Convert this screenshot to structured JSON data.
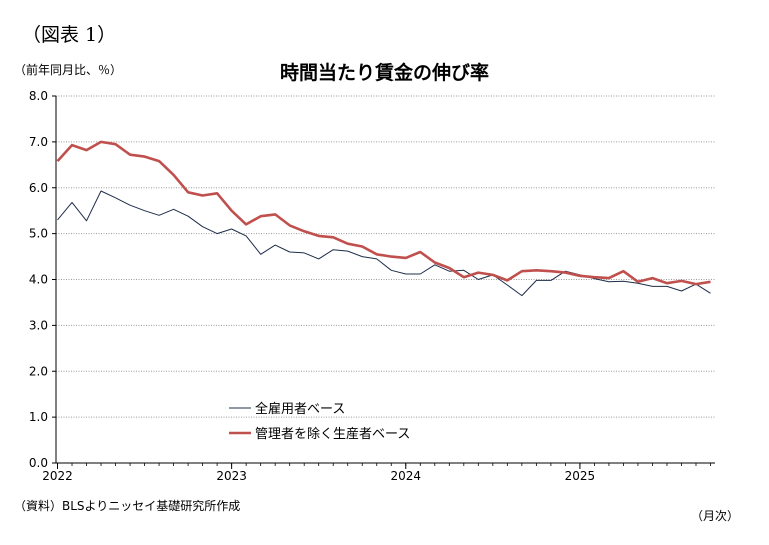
{
  "figure_label": "（図表 1）",
  "chart_data": {
    "type": "line",
    "title": "時間当たり賃金の伸び率",
    "ylabel": "（前年同月比、％）",
    "xlabel": "（月次）",
    "source": "（資料）BLSよりニッセイ基礎研究所作成",
    "ylim": [
      0,
      8
    ],
    "yticks": [
      "0.0",
      "1.0",
      "2.0",
      "3.0",
      "4.0",
      "5.0",
      "6.0",
      "7.0",
      "8.0"
    ],
    "xticks": [
      {
        "label": "2022",
        "index": 0
      },
      {
        "label": "2023",
        "index": 12
      },
      {
        "label": "2024",
        "index": 24
      },
      {
        "label": "2025",
        "index": 36
      }
    ],
    "grid": true,
    "legend_position": "bottom-left",
    "start_month": "2022-01",
    "series": [
      {
        "name": "全雇用者ベース",
        "color": "#1f2d4a",
        "values": [
          5.3,
          5.68,
          5.28,
          5.93,
          5.78,
          5.62,
          5.5,
          5.4,
          5.53,
          5.38,
          5.15,
          5.0,
          5.1,
          4.95,
          4.55,
          4.75,
          4.6,
          4.58,
          4.45,
          4.65,
          4.62,
          4.5,
          4.45,
          4.2,
          4.12,
          4.12,
          4.32,
          4.18,
          4.2,
          4.0,
          4.1,
          3.88,
          3.65,
          3.98,
          3.98,
          4.18,
          4.1,
          4.02,
          3.95,
          3.96,
          3.92,
          3.85,
          3.85,
          3.75,
          3.9,
          3.7
        ]
      },
      {
        "name": "管理者を除く生産者ベース",
        "color": "#c0504d",
        "values": [
          6.58,
          6.93,
          6.82,
          7.0,
          6.95,
          6.72,
          6.68,
          6.58,
          6.28,
          5.9,
          5.83,
          5.88,
          5.5,
          5.2,
          5.38,
          5.42,
          5.18,
          5.05,
          4.95,
          4.92,
          4.78,
          4.72,
          4.55,
          4.5,
          4.47,
          4.6,
          4.37,
          4.25,
          4.05,
          4.15,
          4.1,
          3.98,
          4.18,
          4.2,
          4.18,
          4.15,
          4.08,
          4.05,
          4.03,
          4.18,
          3.95,
          4.03,
          3.92,
          3.97,
          3.9,
          3.95
        ]
      }
    ]
  }
}
